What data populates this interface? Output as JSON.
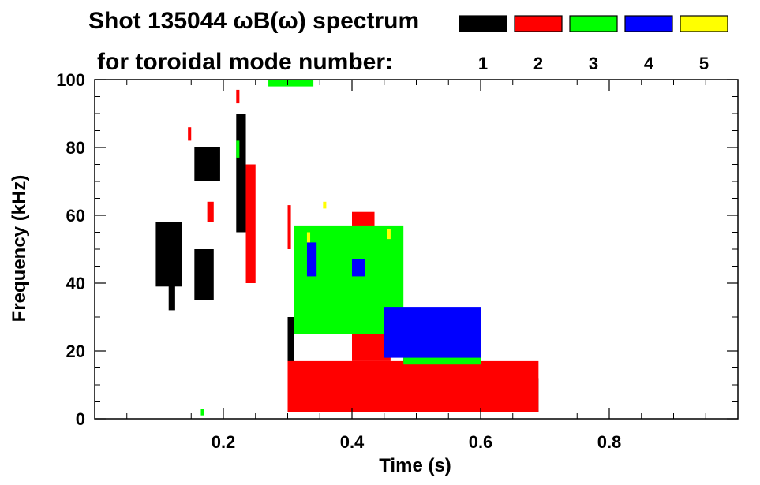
{
  "chart_data": {
    "type": "heatmap",
    "title": "Shot 135044 ωB(ω) spectrum",
    "subtitle": "for toroidal mode number:",
    "xlabel": "Time (s)",
    "ylabel": "Frequency (kHz)",
    "xlim": [
      0.0,
      1.0
    ],
    "ylim": [
      0,
      100
    ],
    "xticks": [
      0.2,
      0.4,
      0.6,
      0.8
    ],
    "yticks": [
      0,
      20,
      40,
      60,
      80,
      100
    ],
    "x_minor_step": 0.05,
    "y_minor_step": 5,
    "grid": false,
    "legend_position": "top-right",
    "legend": [
      {
        "label": "1",
        "color": "#000000"
      },
      {
        "label": "2",
        "color": "#ff0000"
      },
      {
        "label": "3",
        "color": "#00ff00"
      },
      {
        "label": "4",
        "color": "#0000ff"
      },
      {
        "label": "5",
        "color": "#ffff00"
      }
    ],
    "series": [
      {
        "mode": "1",
        "color": "#000000",
        "patches": [
          {
            "t0": 0.095,
            "t1": 0.135,
            "f0": 39,
            "f1": 58
          },
          {
            "t0": 0.115,
            "t1": 0.125,
            "f0": 32,
            "f1": 42
          },
          {
            "t0": 0.155,
            "t1": 0.185,
            "f0": 35,
            "f1": 50
          },
          {
            "t0": 0.155,
            "t1": 0.195,
            "f0": 70,
            "f1": 80
          },
          {
            "t0": 0.22,
            "t1": 0.235,
            "f0": 55,
            "f1": 90
          },
          {
            "t0": 0.3,
            "t1": 0.69,
            "f0": 2,
            "f1": 12
          },
          {
            "t0": 0.3,
            "t1": 0.31,
            "f0": 15,
            "f1": 30
          },
          {
            "t0": 0.48,
            "t1": 0.5,
            "f0": 14,
            "f1": 30
          }
        ]
      },
      {
        "mode": "2",
        "color": "#ff0000",
        "patches": [
          {
            "t0": 0.145,
            "t1": 0.15,
            "f0": 82,
            "f1": 86
          },
          {
            "t0": 0.175,
            "t1": 0.185,
            "f0": 58,
            "f1": 64
          },
          {
            "t0": 0.22,
            "t1": 0.225,
            "f0": 93,
            "f1": 97
          },
          {
            "t0": 0.235,
            "t1": 0.25,
            "f0": 40,
            "f1": 75
          },
          {
            "t0": 0.3,
            "t1": 0.305,
            "f0": 50,
            "f1": 63
          },
          {
            "t0": 0.4,
            "t1": 0.435,
            "f0": 47,
            "f1": 61
          },
          {
            "t0": 0.4,
            "t1": 0.46,
            "f0": 17,
            "f1": 25
          },
          {
            "t0": 0.3,
            "t1": 0.69,
            "f0": 2,
            "f1": 17
          }
        ]
      },
      {
        "mode": "3",
        "color": "#00ff00",
        "patches": [
          {
            "t0": 0.22,
            "t1": 0.225,
            "f0": 77,
            "f1": 82
          },
          {
            "t0": 0.27,
            "t1": 0.34,
            "f0": 98,
            "f1": 100
          },
          {
            "t0": 0.31,
            "t1": 0.48,
            "f0": 25,
            "f1": 57
          },
          {
            "t0": 0.445,
            "t1": 0.455,
            "f0": 27,
            "f1": 33
          },
          {
            "t0": 0.48,
            "t1": 0.6,
            "f0": 16,
            "f1": 26
          },
          {
            "t0": 0.165,
            "t1": 0.17,
            "f0": 1,
            "f1": 3
          }
        ]
      },
      {
        "mode": "4",
        "color": "#0000ff",
        "patches": [
          {
            "t0": 0.33,
            "t1": 0.345,
            "f0": 42,
            "f1": 52
          },
          {
            "t0": 0.4,
            "t1": 0.42,
            "f0": 42,
            "f1": 47
          },
          {
            "t0": 0.45,
            "t1": 0.6,
            "f0": 18,
            "f1": 33
          }
        ]
      },
      {
        "mode": "5",
        "color": "#ffff00",
        "patches": [
          {
            "t0": 0.33,
            "t1": 0.335,
            "f0": 52,
            "f1": 55
          },
          {
            "t0": 0.355,
            "t1": 0.36,
            "f0": 62,
            "f1": 64
          },
          {
            "t0": 0.455,
            "t1": 0.46,
            "f0": 53,
            "f1": 56
          }
        ]
      }
    ]
  }
}
